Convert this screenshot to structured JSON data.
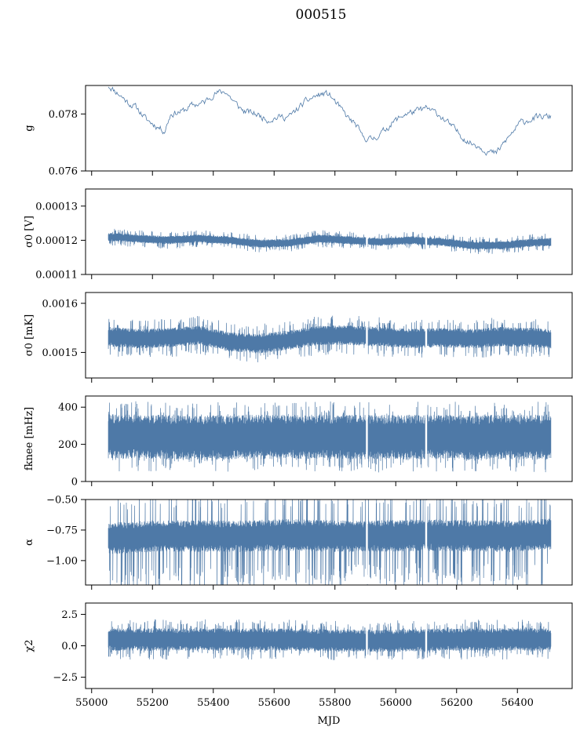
{
  "title": "000515",
  "chart_data": {
    "type": "line",
    "title": "000515",
    "xlabel": "MJD",
    "xlim": [
      54980,
      56580
    ],
    "x_ticks": [
      55000,
      55200,
      55400,
      55600,
      55800,
      56000,
      56200,
      56400
    ],
    "x_tick_labels": [
      "55000",
      "55200",
      "55400",
      "55600",
      "55800",
      "56000",
      "56200",
      "56400"
    ],
    "data_x_range": [
      55055,
      56510
    ],
    "series_color": "#4e79a7",
    "gaps": [
      55905,
      56100
    ],
    "panels": [
      {
        "name": "g",
        "ylabel": "g",
        "ylim": [
          0.076,
          0.079
        ],
        "y_ticks": [
          0.076,
          0.078
        ],
        "y_tick_labels": [
          "0.076",
          "0.078"
        ],
        "style": "thin",
        "keypoints": [
          [
            55055,
            0.079
          ],
          [
            55090,
            0.0787
          ],
          [
            55120,
            0.0784
          ],
          [
            55150,
            0.0782
          ],
          [
            55180,
            0.0778
          ],
          [
            55210,
            0.0776
          ],
          [
            55240,
            0.0774
          ],
          [
            55260,
            0.078
          ],
          [
            55300,
            0.0781
          ],
          [
            55330,
            0.0783
          ],
          [
            55370,
            0.0784
          ],
          [
            55400,
            0.0787
          ],
          [
            55440,
            0.0788
          ],
          [
            55470,
            0.0784
          ],
          [
            55500,
            0.0781
          ],
          [
            55540,
            0.078
          ],
          [
            55580,
            0.0778
          ],
          [
            55620,
            0.0779
          ],
          [
            55650,
            0.0779
          ],
          [
            55680,
            0.0782
          ],
          [
            55700,
            0.0784
          ],
          [
            55730,
            0.0786
          ],
          [
            55760,
            0.0787
          ],
          [
            55780,
            0.0787
          ],
          [
            55810,
            0.0783
          ],
          [
            55840,
            0.0779
          ],
          [
            55870,
            0.0776
          ],
          [
            55890,
            0.0772
          ],
          [
            55920,
            0.0771
          ],
          [
            55950,
            0.0773
          ],
          [
            55990,
            0.0777
          ],
          [
            56030,
            0.078
          ],
          [
            56070,
            0.0781
          ],
          [
            56100,
            0.0782
          ],
          [
            56140,
            0.078
          ],
          [
            56170,
            0.0777
          ],
          [
            56200,
            0.0774
          ],
          [
            56240,
            0.077
          ],
          [
            56270,
            0.0769
          ],
          [
            56300,
            0.0767
          ],
          [
            56330,
            0.0766
          ],
          [
            56350,
            0.0769
          ],
          [
            56380,
            0.0773
          ],
          [
            56410,
            0.0777
          ],
          [
            56440,
            0.0778
          ],
          [
            56480,
            0.0779
          ],
          [
            56510,
            0.0779
          ]
        ],
        "noise": 0.00012,
        "seed": 11
      },
      {
        "name": "sigma0-v",
        "ylabel": "σ0 [V]",
        "ylim": [
          0.00011,
          0.000135
        ],
        "y_ticks": [
          0.00011,
          0.00012,
          0.00013
        ],
        "y_tick_labels": [
          "0.00011",
          "0.00012",
          "0.00013"
        ],
        "style": "band",
        "keypoints": [
          [
            55055,
            0.000121
          ],
          [
            55150,
            0.0001205
          ],
          [
            55250,
            0.00012
          ],
          [
            55350,
            0.0001205
          ],
          [
            55450,
            0.00012
          ],
          [
            55550,
            0.000119
          ],
          [
            55650,
            0.0001192
          ],
          [
            55750,
            0.0001205
          ],
          [
            55850,
            0.00012
          ],
          [
            55950,
            0.0001195
          ],
          [
            56050,
            0.00012
          ],
          [
            56150,
            0.0001195
          ],
          [
            56250,
            0.0001185
          ],
          [
            56350,
            0.0001185
          ],
          [
            56450,
            0.0001193
          ],
          [
            56510,
            0.0001195
          ]
        ],
        "halfwidth": 1.2e-06,
        "spike": 2.5e-06,
        "seed": 23
      },
      {
        "name": "sigma0-mk",
        "ylabel": "σ0 [mK]",
        "ylim": [
          0.001448,
          0.001622
        ],
        "y_ticks": [
          0.0015,
          0.0016
        ],
        "y_tick_labels": [
          "0.0015",
          "0.0016"
        ],
        "style": "band",
        "keypoints": [
          [
            55055,
            0.001532
          ],
          [
            55150,
            0.001528
          ],
          [
            55250,
            0.00153
          ],
          [
            55350,
            0.001535
          ],
          [
            55450,
            0.001522
          ],
          [
            55550,
            0.001518
          ],
          [
            55650,
            0.001525
          ],
          [
            55750,
            0.001535
          ],
          [
            55850,
            0.001535
          ],
          [
            55950,
            0.001532
          ],
          [
            56050,
            0.001528
          ],
          [
            56150,
            0.00153
          ],
          [
            56250,
            0.001528
          ],
          [
            56350,
            0.001532
          ],
          [
            56450,
            0.00153
          ],
          [
            56510,
            0.001528
          ]
        ],
        "halfwidth": 2e-05,
        "spike": 4e-05,
        "seed": 37
      },
      {
        "name": "fknee",
        "ylabel": "fknee [mHz]",
        "ylim": [
          0,
          460
        ],
        "y_ticks": [
          0,
          200,
          400
        ],
        "y_tick_labels": [
          "0",
          "200",
          "400"
        ],
        "style": "band",
        "keypoints": [
          [
            55055,
            245
          ],
          [
            55200,
            240
          ],
          [
            55350,
            235
          ],
          [
            55500,
            240
          ],
          [
            55650,
            240
          ],
          [
            55800,
            242
          ],
          [
            55950,
            238
          ],
          [
            56100,
            240
          ],
          [
            56250,
            238
          ],
          [
            56400,
            240
          ],
          [
            56510,
            240
          ]
        ],
        "halfwidth": 120,
        "spike": 190,
        "seed": 41
      },
      {
        "name": "alpha",
        "ylabel": "α",
        "ylim": [
          -1.2,
          -0.5
        ],
        "y_ticks": [
          -1.0,
          -0.75,
          -0.5
        ],
        "y_tick_labels": [
          "−1.00",
          "−0.75",
          "−0.50"
        ],
        "style": "band-skew",
        "keypoints": [
          [
            55055,
            -0.82
          ],
          [
            55200,
            -0.8
          ],
          [
            55350,
            -0.8
          ],
          [
            55500,
            -0.8
          ],
          [
            55650,
            -0.79
          ],
          [
            55800,
            -0.8
          ],
          [
            55950,
            -0.8
          ],
          [
            56100,
            -0.79
          ],
          [
            56250,
            -0.8
          ],
          [
            56400,
            -0.8
          ],
          [
            56510,
            -0.78
          ]
        ],
        "halfwidth": 0.13,
        "spike": 0.38,
        "seed": 53
      },
      {
        "name": "chi2",
        "ylabel": "χ2",
        "ylim": [
          -3.4,
          3.4
        ],
        "y_ticks": [
          -2.5,
          0.0,
          2.5
        ],
        "y_tick_labels": [
          "−2.5",
          "0.0",
          "2.5"
        ],
        "style": "band",
        "keypoints": [
          [
            55055,
            0.5
          ],
          [
            55300,
            0.5
          ],
          [
            55600,
            0.5
          ],
          [
            55900,
            0.4
          ],
          [
            56200,
            0.5
          ],
          [
            56510,
            0.5
          ]
        ],
        "halfwidth": 0.9,
        "spike": 1.6,
        "seed": 67
      }
    ]
  }
}
